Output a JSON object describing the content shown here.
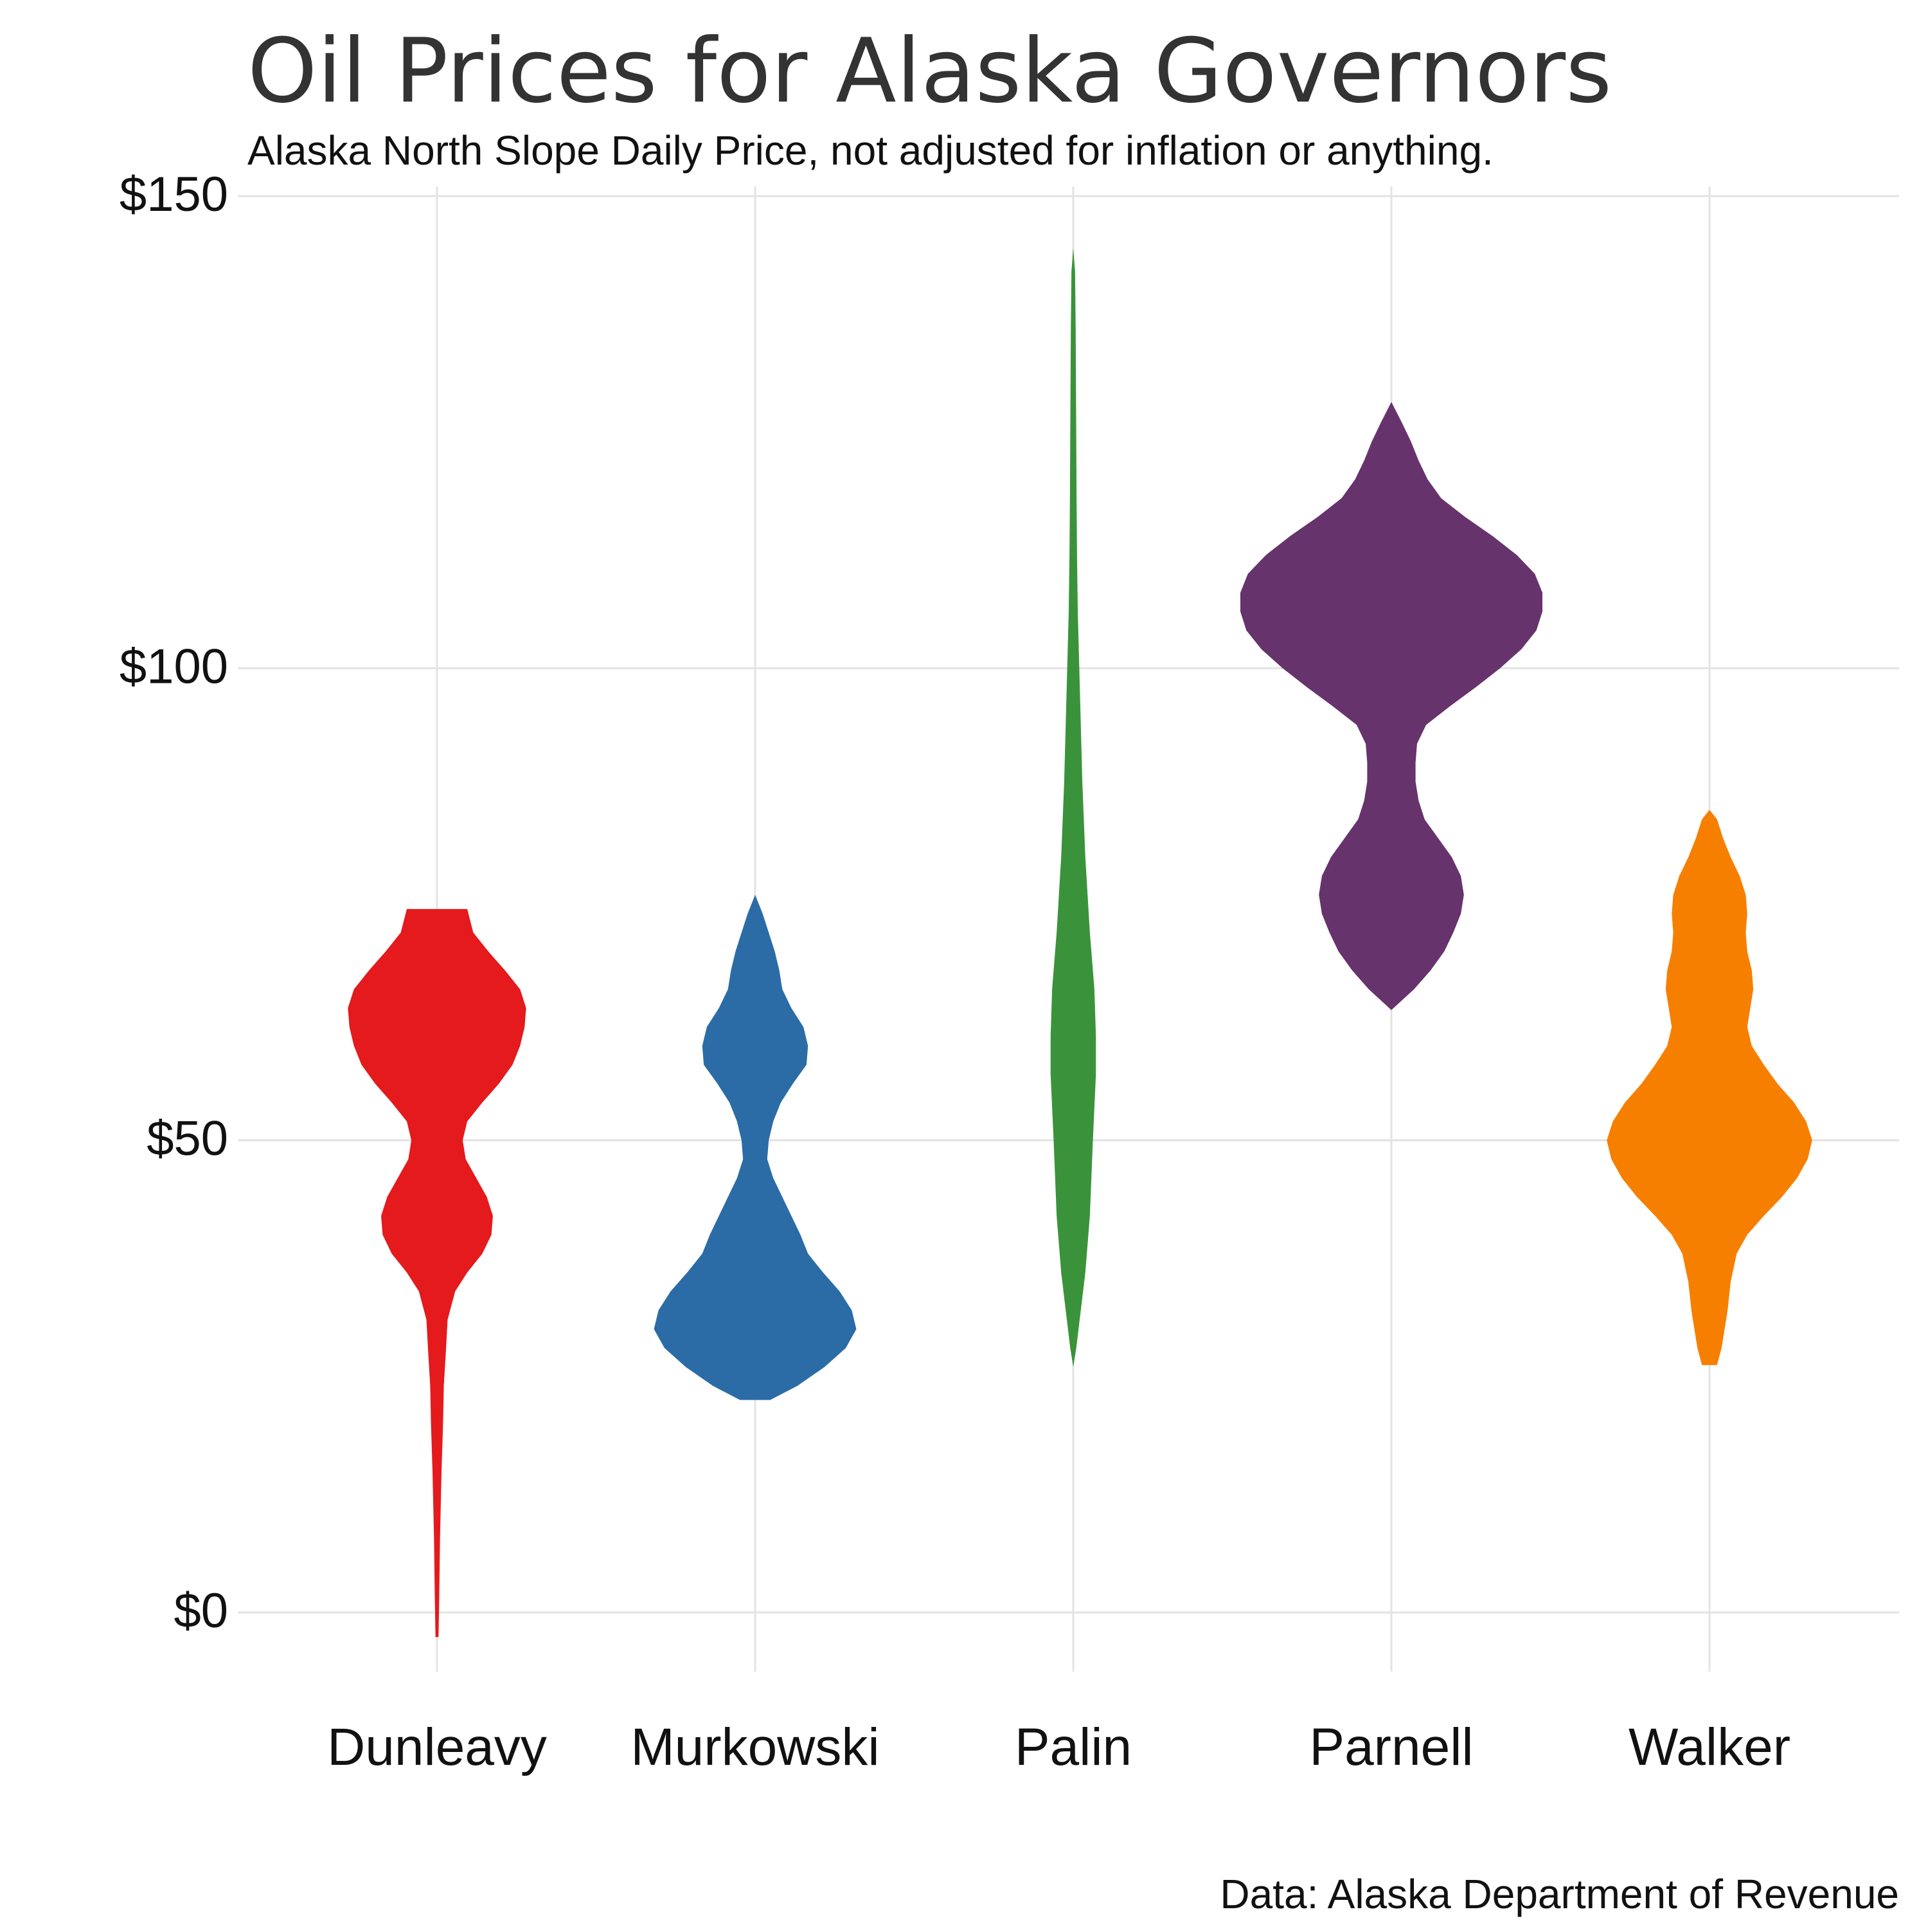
{
  "chart_data": {
    "type": "violin",
    "title": "Oil Prices for Alaska Governors",
    "subtitle": "Alaska North Slope Daily Price, not adjusted for inflation or anything.",
    "caption": "Data: Alaska Department of Revenue",
    "xlabel": "",
    "ylabel": "",
    "ylim": [
      -9,
      150
    ],
    "yticks": [
      0,
      50,
      100,
      150
    ],
    "ytick_labels": [
      "$0",
      "$50",
      "$100",
      "$150"
    ],
    "grid": true,
    "legend": "none",
    "categories": [
      "Dunleavy",
      "Murkowski",
      "Palin",
      "Parnell",
      "Walker"
    ],
    "series": [
      {
        "colors": [
          "#e41a1c"
        ],
        "range": [
          -2.6,
          74.5
        ],
        "density_profile": [
          [
            -2.6,
            0.01
          ],
          [
            2,
            0.015
          ],
          [
            8,
            0.02
          ],
          [
            15,
            0.03
          ],
          [
            20,
            0.04
          ],
          [
            24,
            0.045
          ],
          [
            28,
            0.06
          ],
          [
            31,
            0.07
          ],
          [
            34,
            0.12
          ],
          [
            36,
            0.2
          ],
          [
            38,
            0.3
          ],
          [
            40,
            0.36
          ],
          [
            42,
            0.37
          ],
          [
            44,
            0.33
          ],
          [
            46,
            0.26
          ],
          [
            48,
            0.19
          ],
          [
            50,
            0.17
          ],
          [
            52,
            0.2
          ],
          [
            54,
            0.3
          ],
          [
            56,
            0.41
          ],
          [
            58,
            0.5
          ],
          [
            60,
            0.55
          ],
          [
            62,
            0.58
          ],
          [
            64,
            0.59
          ],
          [
            66,
            0.55
          ],
          [
            68,
            0.45
          ],
          [
            70,
            0.34
          ],
          [
            72,
            0.24
          ],
          [
            74.5,
            0.2
          ]
        ]
      },
      {
        "colors": [
          "#2b6ca6"
        ],
        "range": [
          22.5,
          76
        ]
      },
      {
        "colors": [
          "#3a933a"
        ],
        "range": [
          26,
          144.5
        ]
      },
      {
        "colors": [
          "#67336c"
        ],
        "range": [
          63.8,
          128.2
        ]
      },
      {
        "colors": [
          "#f77f00"
        ],
        "range": [
          26.2,
          85
        ]
      }
    ]
  }
}
